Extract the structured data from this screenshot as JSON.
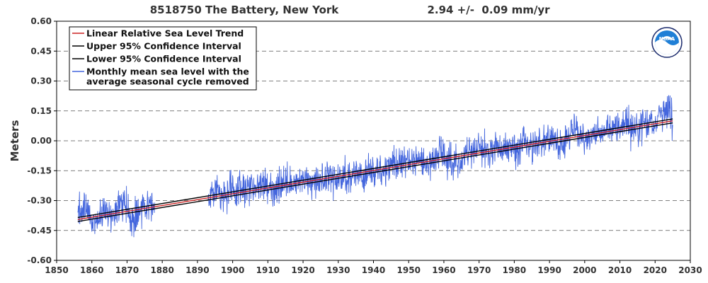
{
  "header": {
    "station": "8518750 The Battery, New York",
    "rate": "2.94 +/-  0.09 mm/yr"
  },
  "colors": {
    "trend": "#cc2222",
    "ci": "#000000",
    "monthly": "#4466dd",
    "grid": "#555555",
    "logo_blue": "#1f7fd6",
    "logo_dark": "#1a2a6c"
  },
  "logo": {
    "text": "NOAA"
  },
  "chart_data": {
    "type": "line",
    "ylabel": "Meters",
    "xlim": [
      1850,
      2030
    ],
    "ylim": [
      -0.6,
      0.6
    ],
    "x_ticks": [
      1850,
      1860,
      1870,
      1880,
      1890,
      1900,
      1910,
      1920,
      1930,
      1940,
      1950,
      1960,
      1970,
      1980,
      1990,
      2000,
      2010,
      2020,
      2030
    ],
    "y_ticks": [
      "0.60",
      "0.45",
      "0.30",
      "0.15",
      "0.00",
      "-0.15",
      "-0.30",
      "-0.45",
      "-0.60"
    ],
    "grid": "horizontal dashed",
    "legend_position": "top-left",
    "legend": [
      "Linear Relative Sea Level Trend",
      "Upper 95% Confidence Interval",
      "Lower 95% Confidence Interval",
      "Monthly mean sea level with the average seasonal cycle removed"
    ],
    "legend_lines": {
      "trend": "Linear Relative Sea Level Trend",
      "upper": "Upper 95% Confidence Interval",
      "lower": "Lower 95% Confidence Interval",
      "monthly_1": "Monthly mean sea level with the",
      "monthly_2": "average seasonal cycle removed"
    },
    "trend": {
      "x": [
        1856,
        2025
      ],
      "y": [
        -0.395,
        0.1
      ]
    },
    "upper_ci": {
      "x": [
        1856,
        2025
      ],
      "y": [
        -0.385,
        0.11
      ]
    },
    "lower_ci": {
      "x": [
        1856,
        2025
      ],
      "y": [
        -0.405,
        0.09
      ]
    },
    "monthly_gap": [
      1879,
      1893
    ],
    "monthly_series": [
      {
        "x": 1856,
        "y": -0.35
      },
      {
        "x": 1858,
        "y": -0.33
      },
      {
        "x": 1860,
        "y": -0.4
      },
      {
        "x": 1862,
        "y": -0.37
      },
      {
        "x": 1864,
        "y": -0.36
      },
      {
        "x": 1866,
        "y": -0.38
      },
      {
        "x": 1868,
        "y": -0.3
      },
      {
        "x": 1870,
        "y": -0.34
      },
      {
        "x": 1872,
        "y": -0.4
      },
      {
        "x": 1874,
        "y": -0.33
      },
      {
        "x": 1876,
        "y": -0.3
      },
      {
        "x": 1878,
        "y": -0.32
      },
      {
        "x": 1893,
        "y": -0.3
      },
      {
        "x": 1895,
        "y": -0.27
      },
      {
        "x": 1897,
        "y": -0.25
      },
      {
        "x": 1899,
        "y": -0.24
      },
      {
        "x": 1901,
        "y": -0.26
      },
      {
        "x": 1903,
        "y": -0.22
      },
      {
        "x": 1905,
        "y": -0.25
      },
      {
        "x": 1907,
        "y": -0.24
      },
      {
        "x": 1909,
        "y": -0.21
      },
      {
        "x": 1911,
        "y": -0.26
      },
      {
        "x": 1913,
        "y": -0.22
      },
      {
        "x": 1915,
        "y": -0.2
      },
      {
        "x": 1917,
        "y": -0.23
      },
      {
        "x": 1919,
        "y": -0.19
      },
      {
        "x": 1921,
        "y": -0.2
      },
      {
        "x": 1923,
        "y": -0.22
      },
      {
        "x": 1925,
        "y": -0.19
      },
      {
        "x": 1927,
        "y": -0.17
      },
      {
        "x": 1929,
        "y": -0.2
      },
      {
        "x": 1931,
        "y": -0.18
      },
      {
        "x": 1933,
        "y": -0.19
      },
      {
        "x": 1935,
        "y": -0.15
      },
      {
        "x": 1937,
        "y": -0.18
      },
      {
        "x": 1939,
        "y": -0.14
      },
      {
        "x": 1941,
        "y": -0.16
      },
      {
        "x": 1943,
        "y": -0.13
      },
      {
        "x": 1945,
        "y": -0.1
      },
      {
        "x": 1947,
        "y": -0.12
      },
      {
        "x": 1949,
        "y": -0.09
      },
      {
        "x": 1951,
        "y": -0.11
      },
      {
        "x": 1953,
        "y": -0.08
      },
      {
        "x": 1955,
        "y": -0.12
      },
      {
        "x": 1957,
        "y": -0.1
      },
      {
        "x": 1959,
        "y": -0.07
      },
      {
        "x": 1961,
        "y": -0.09
      },
      {
        "x": 1963,
        "y": -0.1
      },
      {
        "x": 1965,
        "y": -0.11
      },
      {
        "x": 1967,
        "y": -0.06
      },
      {
        "x": 1969,
        "y": -0.05
      },
      {
        "x": 1971,
        "y": -0.04
      },
      {
        "x": 1973,
        "y": -0.06
      },
      {
        "x": 1975,
        "y": -0.03
      },
      {
        "x": 1977,
        "y": -0.05
      },
      {
        "x": 1979,
        "y": -0.02
      },
      {
        "x": 1981,
        "y": -0.03
      },
      {
        "x": 1983,
        "y": 0.0
      },
      {
        "x": 1985,
        "y": -0.04
      },
      {
        "x": 1987,
        "y": -0.01
      },
      {
        "x": 1989,
        "y": 0.02
      },
      {
        "x": 1991,
        "y": 0.0
      },
      {
        "x": 1993,
        "y": -0.02
      },
      {
        "x": 1995,
        "y": 0.0
      },
      {
        "x": 1997,
        "y": 0.06
      },
      {
        "x": 1999,
        "y": 0.03
      },
      {
        "x": 2001,
        "y": 0.01
      },
      {
        "x": 2003,
        "y": 0.04
      },
      {
        "x": 2005,
        "y": 0.03
      },
      {
        "x": 2007,
        "y": 0.05
      },
      {
        "x": 2009,
        "y": 0.08
      },
      {
        "x": 2011,
        "y": 0.09
      },
      {
        "x": 2013,
        "y": 0.05
      },
      {
        "x": 2015,
        "y": 0.07
      },
      {
        "x": 2017,
        "y": 0.09
      },
      {
        "x": 2019,
        "y": 0.1
      },
      {
        "x": 2021,
        "y": 0.11
      },
      {
        "x": 2023,
        "y": 0.14
      },
      {
        "x": 2024,
        "y": 0.18
      },
      {
        "x": 2025,
        "y": 0.08
      }
    ]
  }
}
